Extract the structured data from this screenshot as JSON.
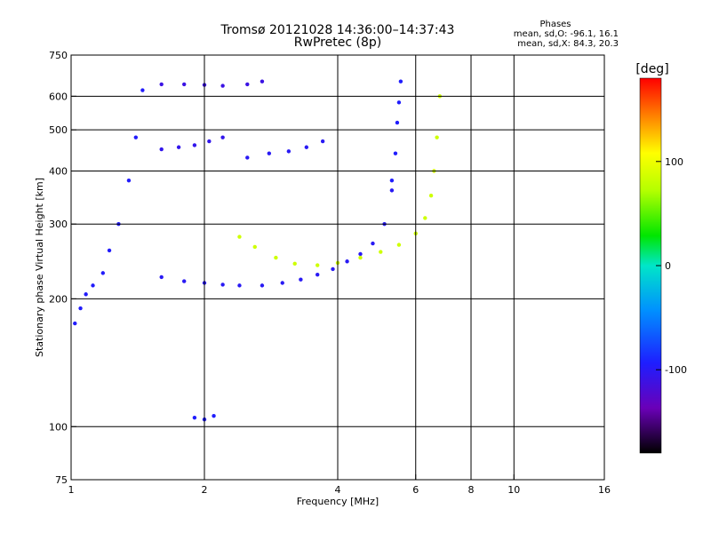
{
  "header": {
    "title": "Tromsø 20121028 14:36:00–14:37:43",
    "subtitle": "RwPretec (8p)"
  },
  "stats": {
    "title": "Phases",
    "line_o": "mean, sd,O: -96.1, 16.1",
    "line_x": "mean, sd,X:  84.3, 20.3"
  },
  "colorbar": {
    "unit": "[deg]",
    "range": [
      -180,
      180
    ],
    "ticks": [
      100,
      0,
      -100
    ],
    "tick_labels": [
      "100",
      "0",
      "-100"
    ]
  },
  "chart_data": {
    "type": "scatter",
    "title": "Tromsø 20121028 14:36:00–14:37:43",
    "subtitle": "RwPretec (8p)",
    "xlabel": "Frequency [MHz]",
    "ylabel": "Stationary phase Virtual Height [km]",
    "xscale": "log",
    "yscale": "log",
    "xlim": [
      1,
      16
    ],
    "ylim": [
      75,
      750
    ],
    "xticks": [
      1,
      2,
      4,
      6,
      8,
      10,
      16
    ],
    "xtick_labels": [
      "1",
      "2",
      "4",
      "6",
      "8",
      "10",
      "16"
    ],
    "xgrid": [
      1,
      2,
      4,
      6,
      8,
      10,
      16
    ],
    "ygrid": [
      100,
      200,
      300,
      400,
      500,
      600
    ],
    "yticks": [
      75,
      100,
      200,
      300,
      400,
      500,
      600,
      750
    ],
    "ytick_labels": [
      "75",
      "100",
      "200",
      "300",
      "400",
      "500",
      "600",
      "750"
    ],
    "grid": true,
    "color_variable": "phase [deg]",
    "traces": [
      {
        "name": "",
        "polarity": "O",
        "mean_phase": -96.1,
        "sd_phase": 16.1,
        "x": [
          1.02,
          1.05,
          1.08,
          1.12,
          1.18,
          1.22,
          1.28,
          1.35,
          1.4,
          1.45
        ],
        "y": [
          175,
          190,
          205,
          215,
          230,
          260,
          300,
          380,
          480,
          620
        ]
      },
      {
        "name": "",
        "polarity": "O",
        "mean_phase": -100,
        "x": [
          1.6,
          1.8,
          2.0,
          2.2,
          2.4,
          2.7,
          3.0,
          3.3,
          3.6,
          3.9,
          4.2,
          4.5,
          4.8,
          5.1,
          5.3
        ],
        "y": [
          225,
          220,
          218,
          216,
          215,
          215,
          218,
          222,
          228,
          235,
          245,
          255,
          270,
          300,
          360
        ]
      },
      {
        "name": "",
        "polarity": "O",
        "mean_phase": -95,
        "x": [
          5.3,
          5.4,
          5.45,
          5.5,
          5.55
        ],
        "y": [
          380,
          440,
          520,
          580,
          650
        ]
      },
      {
        "name": "",
        "polarity": "X",
        "mean_phase": 84.3,
        "sd_phase": 20.3,
        "x": [
          2.4,
          2.6,
          2.9,
          3.2,
          3.6,
          4.0,
          4.5,
          5.0,
          5.5,
          6.0,
          6.3,
          6.5,
          6.6,
          6.7,
          6.8
        ],
        "y": [
          280,
          265,
          250,
          242,
          240,
          243,
          250,
          258,
          268,
          285,
          310,
          350,
          400,
          480,
          600
        ]
      },
      {
        "name": "",
        "polarity": "O",
        "mean_phase": -105,
        "x": [
          1.6,
          1.75,
          1.9,
          2.05,
          2.2
        ],
        "y": [
          450,
          455,
          460,
          470,
          480
        ]
      },
      {
        "name": "",
        "polarity": "O",
        "mean_phase": -110,
        "x": [
          1.6,
          1.8,
          2.0,
          2.2,
          2.5,
          2.7
        ],
        "y": [
          640,
          640,
          638,
          635,
          640,
          650
        ]
      },
      {
        "name": "",
        "polarity": "O",
        "mean_phase": -100,
        "x": [
          2.5,
          2.8,
          3.1,
          3.4,
          3.7
        ],
        "y": [
          430,
          440,
          445,
          455,
          470
        ]
      },
      {
        "name": "",
        "polarity": "O",
        "mean_phase": -95,
        "x": [
          1.9,
          2.0,
          2.1
        ],
        "y": [
          105,
          104,
          106
        ]
      }
    ]
  }
}
